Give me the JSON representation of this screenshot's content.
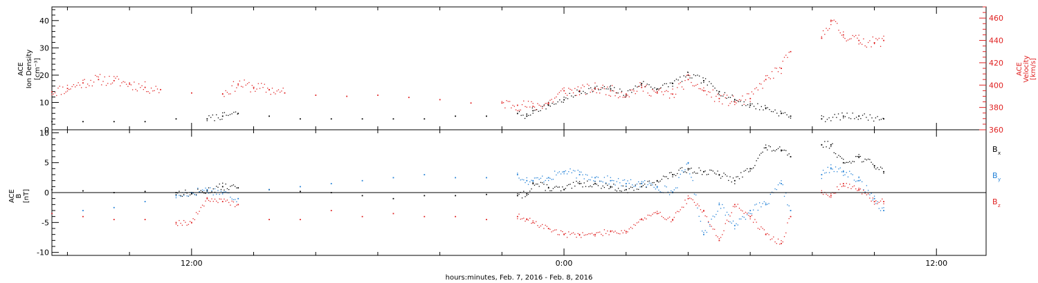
{
  "chart_data": [
    {
      "type": "scatter",
      "panel": "top",
      "title": "",
      "xlabel": "hours:minutes, Feb.  7, 2016 - Feb.  8, 2016",
      "x_tick_labels": [
        "12:00",
        "0:00",
        "12:00"
      ],
      "x_tick_hours": [
        12,
        24,
        36
      ],
      "xlim_hours": [
        7.5,
        37.6
      ],
      "grid": false,
      "left_axis": {
        "label_lines": [
          "ACE",
          "Ion Density",
          "[cm⁻³]"
        ],
        "ylim": [
          0,
          45
        ],
        "ticks": [
          0,
          10,
          20,
          30,
          40
        ],
        "tick_labels": [
          "0",
          "10",
          "20",
          "30",
          "40"
        ],
        "color": "#000000"
      },
      "right_axis": {
        "label_lines": [
          "ACE",
          "Velocity",
          "[km/s]"
        ],
        "ylim": [
          360,
          470
        ],
        "ticks": [
          360,
          380,
          400,
          420,
          440,
          460
        ],
        "tick_labels": [
          "360",
          "380",
          "400",
          "420",
          "440",
          "460"
        ],
        "color": "#e02020"
      },
      "series": [
        {
          "axis": "left",
          "color": "#000000",
          "x": [
            7.5,
            8.5,
            9.5,
            10.5,
            11.5,
            12.5,
            13.0,
            13.5,
            14.5,
            15.5,
            16.5,
            17.5,
            18.5,
            19.5,
            20.5,
            21.5,
            22.5,
            22.8,
            23.0,
            23.5,
            24.0,
            24.5,
            25.0,
            25.5,
            26.0,
            26.5,
            27.0,
            27.5,
            28.0,
            28.5,
            29.0,
            29.5,
            30.0,
            30.5,
            31.0,
            31.3,
            32.3,
            33.0,
            33.5,
            34.3
          ],
          "y": [
            3,
            3,
            3,
            3,
            4,
            4,
            5,
            6,
            5,
            4,
            4,
            4,
            4,
            4,
            5,
            5,
            6,
            5,
            7,
            9,
            11,
            14,
            15,
            15,
            13,
            17,
            15,
            17,
            20,
            18,
            14,
            11,
            9,
            8,
            6,
            5,
            4,
            5,
            5,
            4
          ]
        },
        {
          "axis": "right",
          "color": "#e02020",
          "x": [
            7.5,
            8.0,
            8.5,
            9.0,
            9.5,
            10.0,
            10.5,
            11.0,
            12.0,
            13.0,
            13.5,
            14.0,
            14.5,
            15.0,
            16.0,
            17.0,
            18.0,
            19.0,
            20.0,
            21.0,
            22.0,
            22.5,
            23.0,
            23.5,
            24.0,
            24.5,
            25.0,
            25.5,
            26.0,
            26.5,
            27.0,
            27.5,
            28.0,
            28.5,
            29.0,
            29.5,
            30.0,
            30.5,
            31.0,
            31.3,
            32.3,
            32.6,
            33.0,
            33.5,
            34.0,
            34.3
          ],
          "y": [
            394,
            397,
            402,
            405,
            404,
            401,
            398,
            396,
            393,
            392,
            401,
            398,
            396,
            393,
            391,
            390,
            391,
            389,
            387,
            384,
            384,
            382,
            381,
            384,
            395,
            395,
            397,
            395,
            392,
            398,
            393,
            392,
            405,
            395,
            388,
            385,
            388,
            405,
            415,
            430,
            442,
            458,
            445,
            440,
            438,
            440
          ]
        }
      ]
    },
    {
      "type": "scatter",
      "panel": "bottom",
      "title": "",
      "xlabel": "hours:minutes, Feb.  7, 2016 - Feb.  8, 2016",
      "x_tick_labels": [
        "12:00",
        "0:00",
        "12:00"
      ],
      "x_tick_hours": [
        12,
        24,
        36
      ],
      "xlim_hours": [
        7.5,
        37.6
      ],
      "grid": false,
      "zero_line": true,
      "left_axis": {
        "label_lines": [
          "ACE",
          "B",
          "[nT]"
        ],
        "ylim": [
          -10.5,
          10.5
        ],
        "ticks": [
          -10,
          -5,
          0,
          5,
          10
        ],
        "tick_labels": [
          "-10",
          "-5",
          "0",
          "5",
          "10"
        ],
        "color": "#000000"
      },
      "legend_placement": "right",
      "series": [
        {
          "name": "Bx",
          "label_main": "B",
          "label_sub": "x",
          "color": "#000000",
          "x": [
            7.5,
            8.5,
            9.5,
            10.5,
            11.5,
            12.0,
            12.5,
            13.0,
            13.5,
            14.5,
            15.5,
            16.5,
            17.5,
            18.5,
            19.5,
            20.5,
            21.5,
            22.5,
            22.8,
            23.0,
            23.5,
            24.0,
            24.5,
            25.0,
            25.5,
            26.0,
            26.5,
            27.0,
            27.5,
            28.0,
            28.5,
            29.0,
            29.5,
            30.0,
            30.5,
            31.0,
            31.3,
            32.3,
            32.6,
            33.0,
            33.5,
            34.0,
            34.3
          ],
          "y": [
            0.5,
            0.3,
            0.0,
            0.2,
            0.0,
            -0.2,
            0.3,
            1.0,
            0.8,
            0.5,
            0.2,
            0.0,
            -0.5,
            -1.0,
            -0.5,
            -0.5,
            -0.3,
            -0.5,
            -0.2,
            1.5,
            0.8,
            0.5,
            1.5,
            1.5,
            1.0,
            0.5,
            1.0,
            2.0,
            3.0,
            4.0,
            3.5,
            3.0,
            2.0,
            4.0,
            7.5,
            7.0,
            6.0,
            8.0,
            8.0,
            5.0,
            6.0,
            4.5,
            3.5
          ]
        },
        {
          "name": "By",
          "label_main": "B",
          "label_sub": "y",
          "color": "#1f7fd6",
          "x": [
            7.5,
            8.5,
            9.5,
            10.5,
            11.5,
            12.0,
            12.5,
            13.0,
            13.5,
            14.5,
            15.5,
            16.5,
            17.5,
            18.5,
            19.5,
            20.5,
            21.5,
            22.5,
            22.8,
            23.0,
            23.5,
            24.0,
            24.5,
            25.0,
            25.5,
            26.0,
            26.5,
            27.0,
            27.5,
            28.0,
            28.5,
            29.0,
            29.5,
            30.0,
            30.5,
            31.0,
            31.3,
            32.3,
            32.6,
            33.0,
            33.5,
            34.0,
            34.3
          ],
          "y": [
            -3.5,
            -3.0,
            -2.5,
            -1.5,
            -0.5,
            0.0,
            0.5,
            0.0,
            -1.0,
            0.5,
            1.0,
            1.5,
            2.0,
            2.5,
            3.0,
            2.5,
            2.5,
            3.0,
            2.0,
            2.0,
            2.5,
            3.5,
            3.0,
            2.5,
            2.0,
            1.5,
            1.5,
            1.0,
            0.0,
            5.0,
            -7.0,
            -2.0,
            -5.5,
            -3.0,
            -2.0,
            1.5,
            -3.0,
            3.0,
            4.0,
            3.5,
            2.0,
            -1.0,
            -3.0
          ]
        },
        {
          "name": "Bz",
          "label_main": "B",
          "label_sub": "z",
          "color": "#e02020",
          "x": [
            7.5,
            8.5,
            9.5,
            10.5,
            11.5,
            12.0,
            12.5,
            13.0,
            13.5,
            14.5,
            15.5,
            16.5,
            17.5,
            18.5,
            19.5,
            20.5,
            21.5,
            22.5,
            22.8,
            23.0,
            23.5,
            24.0,
            24.5,
            25.0,
            25.5,
            26.0,
            26.5,
            27.0,
            27.5,
            28.0,
            28.5,
            29.0,
            29.5,
            30.0,
            30.5,
            31.0,
            31.3,
            32.3,
            32.6,
            33.0,
            33.5,
            34.0,
            34.3
          ],
          "y": [
            -3.5,
            -4.0,
            -4.5,
            -4.5,
            -5.0,
            -5.0,
            -1.0,
            -1.5,
            -2.0,
            -4.5,
            -4.5,
            -3.0,
            -4.0,
            -3.5,
            -4.0,
            -4.0,
            -4.5,
            -4.0,
            -4.5,
            -5.0,
            -6.0,
            -7.0,
            -7.0,
            -7.0,
            -6.5,
            -6.5,
            -4.5,
            -3.5,
            -4.5,
            -1.0,
            -3.0,
            -8.0,
            -2.0,
            -4.0,
            -7.0,
            -8.5,
            -4.0,
            0.0,
            -0.5,
            1.5,
            0.5,
            -1.5,
            -1.5
          ]
        }
      ]
    }
  ]
}
